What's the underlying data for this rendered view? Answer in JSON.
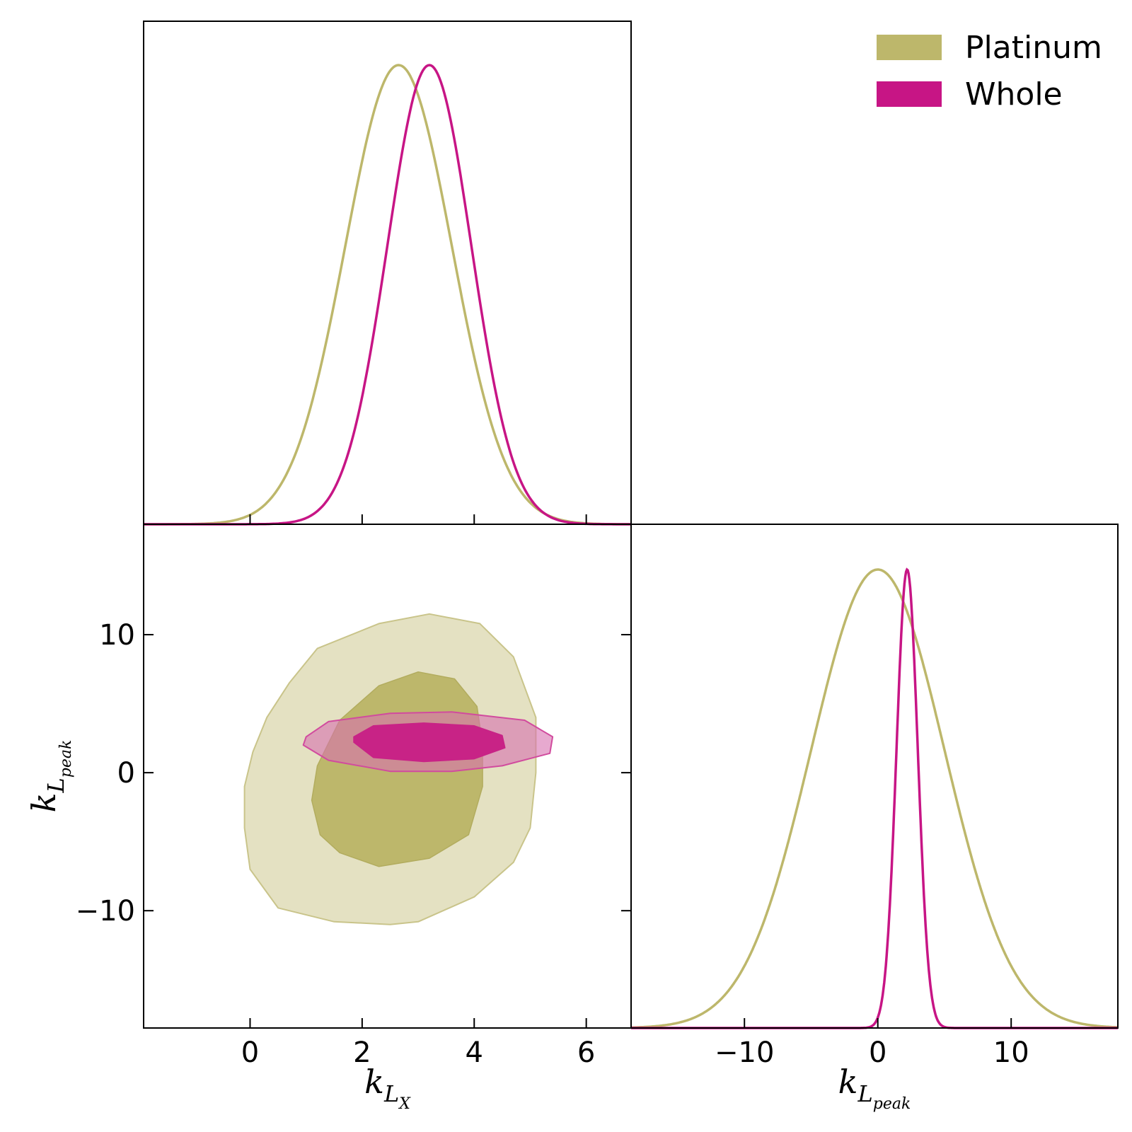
{
  "chart_data": {
    "type": "corner",
    "parameters": [
      {
        "symbol": "k",
        "sub": "L",
        "subsub": "X"
      },
      {
        "symbol": "k",
        "sub": "L",
        "subsub": "peak"
      }
    ],
    "ranges": {
      "k_LX": [
        -1.9,
        6.8
      ],
      "k_Lpeak": [
        -18.5,
        18.0
      ]
    },
    "ticks": {
      "k_LX": [
        0,
        2,
        4,
        6
      ],
      "k_Lpeak": [
        -10,
        0,
        10
      ]
    },
    "legend": {
      "position": "top-right",
      "entries": [
        {
          "name": "Platinum",
          "color": "#bdb76b"
        },
        {
          "name": "Whole",
          "color": "#c71585"
        }
      ]
    },
    "series": [
      {
        "name": "Platinum",
        "color": "#bdb76b",
        "marginal_k_LX": {
          "mean": 2.65,
          "sigma": 0.95
        },
        "marginal_k_Lpeak": {
          "mean": 0.0,
          "sigma": 5.0
        },
        "contour_68": [
          [
            1.1,
            -2
          ],
          [
            1.25,
            -4.5
          ],
          [
            1.6,
            -5.8
          ],
          [
            2.3,
            -6.8
          ],
          [
            3.2,
            -6.2
          ],
          [
            3.9,
            -4.5
          ],
          [
            4.15,
            -1
          ],
          [
            4.15,
            2
          ],
          [
            4.05,
            4.8
          ],
          [
            3.65,
            6.8
          ],
          [
            3.0,
            7.3
          ],
          [
            2.3,
            6.3
          ],
          [
            1.6,
            3.8
          ],
          [
            1.2,
            0.5
          ]
        ],
        "contour_95": [
          [
            -0.1,
            -4
          ],
          [
            0.0,
            -7
          ],
          [
            0.5,
            -9.8
          ],
          [
            1.5,
            -10.8
          ],
          [
            2.5,
            -11.0
          ],
          [
            3.0,
            -10.8
          ],
          [
            4.0,
            -9.0
          ],
          [
            4.7,
            -6.5
          ],
          [
            5.0,
            -4.0
          ],
          [
            5.1,
            0
          ],
          [
            5.1,
            4.0
          ],
          [
            4.7,
            8.4
          ],
          [
            4.1,
            10.8
          ],
          [
            3.2,
            11.5
          ],
          [
            2.3,
            10.8
          ],
          [
            1.2,
            9.0
          ],
          [
            0.7,
            6.5
          ],
          [
            0.3,
            4.0
          ],
          [
            0.05,
            1.5
          ],
          [
            -0.1,
            -1
          ]
        ]
      },
      {
        "name": "Whole",
        "color": "#c71585",
        "marginal_k_LX": {
          "mean": 3.2,
          "sigma": 0.75
        },
        "marginal_k_Lpeak": {
          "mean": 2.2,
          "sigma": 0.8
        },
        "contour_68": [
          [
            1.85,
            2.2
          ],
          [
            2.2,
            1.1
          ],
          [
            3.1,
            0.8
          ],
          [
            4.0,
            1.0
          ],
          [
            4.55,
            1.8
          ],
          [
            4.5,
            2.7
          ],
          [
            4.0,
            3.4
          ],
          [
            3.1,
            3.6
          ],
          [
            2.2,
            3.4
          ],
          [
            1.85,
            2.6
          ]
        ],
        "contour_95": [
          [
            0.95,
            2.0
          ],
          [
            1.4,
            0.9
          ],
          [
            2.5,
            0.1
          ],
          [
            3.6,
            0.1
          ],
          [
            4.5,
            0.5
          ],
          [
            5.35,
            1.4
          ],
          [
            5.4,
            2.6
          ],
          [
            4.9,
            3.8
          ],
          [
            3.6,
            4.4
          ],
          [
            2.5,
            4.3
          ],
          [
            1.4,
            3.7
          ],
          [
            1.0,
            2.6
          ]
        ]
      }
    ]
  }
}
